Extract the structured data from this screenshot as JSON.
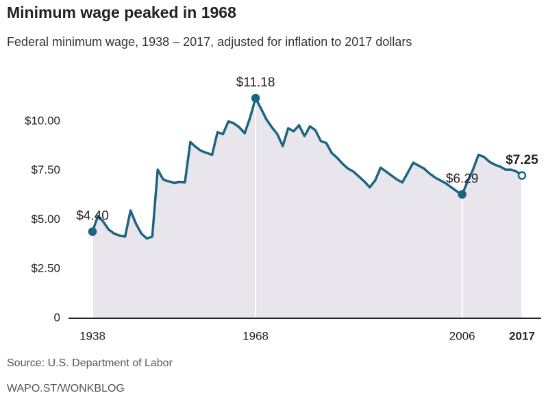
{
  "chart_data": {
    "type": "line",
    "title": "Minimum wage peaked in 1968",
    "subtitle": "Federal minimum wage, 1938 – 2017, adjusted for inflation to 2017 dollars",
    "source": "Source: U.S. Department of Labor",
    "credit": "WAPO.ST/WONKBLOG",
    "x": [
      1938,
      1939,
      1940,
      1941,
      1942,
      1943,
      1944,
      1945,
      1946,
      1947,
      1948,
      1949,
      1950,
      1951,
      1952,
      1953,
      1954,
      1955,
      1956,
      1957,
      1958,
      1959,
      1960,
      1961,
      1962,
      1963,
      1964,
      1965,
      1966,
      1967,
      1968,
      1969,
      1970,
      1971,
      1972,
      1973,
      1974,
      1975,
      1976,
      1977,
      1978,
      1979,
      1980,
      1981,
      1982,
      1983,
      1984,
      1985,
      1986,
      1987,
      1988,
      1989,
      1990,
      1991,
      1992,
      1993,
      1994,
      1995,
      1996,
      1997,
      1998,
      1999,
      2000,
      2001,
      2002,
      2003,
      2004,
      2005,
      2006,
      2007,
      2008,
      2009,
      2010,
      2011,
      2012,
      2013,
      2014,
      2015,
      2016,
      2017
    ],
    "values": [
      4.4,
      5.2,
      4.9,
      4.5,
      4.3,
      4.2,
      4.15,
      5.47,
      4.8,
      4.3,
      4.05,
      4.15,
      7.55,
      7.05,
      6.95,
      6.88,
      6.92,
      6.9,
      8.95,
      8.7,
      8.5,
      8.4,
      8.3,
      9.45,
      9.35,
      10.0,
      9.9,
      9.7,
      9.4,
      10.2,
      11.18,
      10.65,
      10.1,
      9.7,
      9.35,
      8.75,
      9.65,
      9.5,
      9.8,
      9.25,
      9.75,
      9.55,
      9.0,
      8.9,
      8.4,
      8.15,
      7.85,
      7.6,
      7.45,
      7.2,
      6.95,
      6.65,
      7.0,
      7.65,
      7.45,
      7.25,
      7.05,
      6.9,
      7.4,
      7.9,
      7.75,
      7.6,
      7.35,
      7.15,
      7.0,
      6.85,
      6.65,
      6.45,
      6.29,
      6.95,
      7.55,
      8.3,
      8.2,
      7.95,
      7.8,
      7.7,
      7.55,
      7.55,
      7.45,
      7.25
    ],
    "value_labels": [
      "$4.40",
      null,
      null,
      null,
      null,
      null,
      null,
      null,
      null,
      null,
      null,
      null,
      null,
      null,
      null,
      null,
      null,
      null,
      null,
      null,
      null,
      null,
      null,
      null,
      null,
      null,
      null,
      null,
      null,
      null,
      "$11.18",
      null,
      null,
      null,
      null,
      null,
      null,
      null,
      null,
      null,
      null,
      null,
      null,
      null,
      null,
      null,
      null,
      null,
      null,
      null,
      null,
      null,
      null,
      null,
      null,
      null,
      null,
      null,
      null,
      null,
      null,
      null,
      null,
      null,
      null,
      null,
      null,
      null,
      "$6.29",
      null,
      null,
      null,
      null,
      null,
      null,
      null,
      null,
      null,
      null,
      "$7.25"
    ],
    "color": "#1b6580",
    "area_color": "#e8e5ec",
    "xlim": [
      1938,
      2017
    ],
    "xticks": [
      1938,
      1968,
      2006,
      2017
    ],
    "ylim": [
      0,
      11.6
    ],
    "yticks": [
      0,
      {
        "value": 2.5,
        "label": "$2.50"
      },
      {
        "value": 5,
        "label": "$5.00"
      },
      {
        "value": 7.5,
        "label": "$7.50"
      },
      {
        "value": 10,
        "label": "$10.00"
      }
    ],
    "grid": false
  }
}
